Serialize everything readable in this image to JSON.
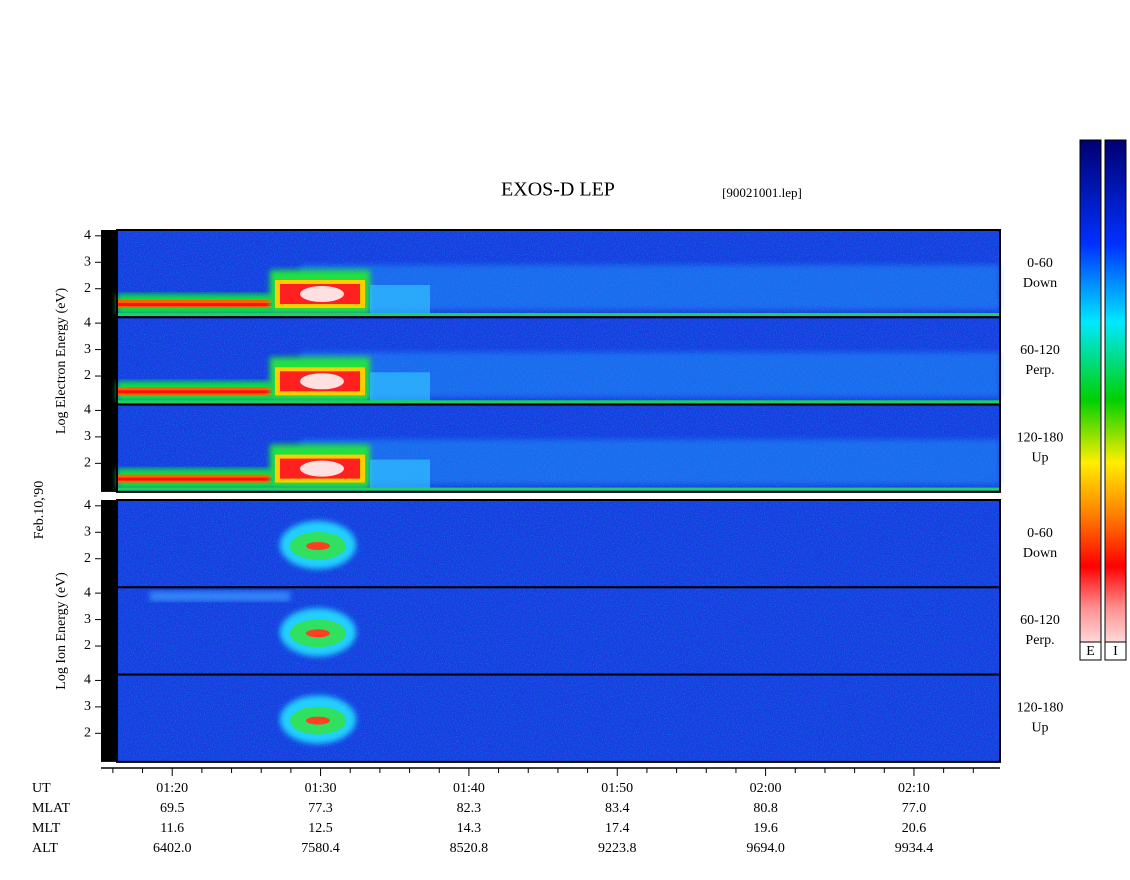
{
  "chart_data": {
    "type": "spectrogram",
    "title": "EXOS-D LEP",
    "file_label": "[90021001.lep]",
    "date_label": "Feb.10,'90",
    "xlim": [
      75.2,
      135.8
    ],
    "xticks": [
      {
        "value": 80,
        "label": "01:20"
      },
      {
        "value": 90,
        "label": "01:30"
      },
      {
        "value": 100,
        "label": "01:40"
      },
      {
        "value": 110,
        "label": "01:50"
      },
      {
        "value": 120,
        "label": "02:00"
      },
      {
        "value": 130,
        "label": "02:10"
      }
    ],
    "minor_xticks": [
      76,
      78,
      82,
      84,
      86,
      88,
      92,
      94,
      96,
      98,
      102,
      104,
      106,
      108,
      112,
      114,
      116,
      118,
      122,
      124,
      126,
      128,
      132,
      134
    ],
    "ylim": [
      0.92,
      4.22
    ],
    "yticks": [
      2,
      3,
      4
    ],
    "groups": [
      {
        "y_label": "Log Electron Energy (eV)",
        "panels": [
          {
            "angle": "0-60",
            "direction": "Down"
          },
          {
            "angle": "60-120",
            "direction": "Perp."
          },
          {
            "angle": "120-180",
            "direction": "Up"
          }
        ]
      },
      {
        "y_label": "Log Ion Energy (eV)",
        "panels": [
          {
            "angle": "0-60",
            "direction": "Down"
          },
          {
            "angle": "60-120",
            "direction": "Perp."
          },
          {
            "angle": "120-180",
            "direction": "Up"
          }
        ]
      }
    ],
    "colorbar_labels": [
      "E",
      "I"
    ],
    "ut_label": "UT",
    "ephemeris": [
      {
        "name": "MLAT",
        "values": [
          "69.5",
          "77.3",
          "82.3",
          "83.4",
          "80.8",
          "77.0"
        ]
      },
      {
        "name": "MLT",
        "values": [
          "11.6",
          "12.5",
          "14.3",
          "17.4",
          "19.6",
          "20.6"
        ]
      },
      {
        "name": "ALT",
        "values": [
          "6402.0",
          "7580.4",
          "8520.8",
          "9223.8",
          "9694.0",
          "9934.4"
        ]
      }
    ]
  }
}
